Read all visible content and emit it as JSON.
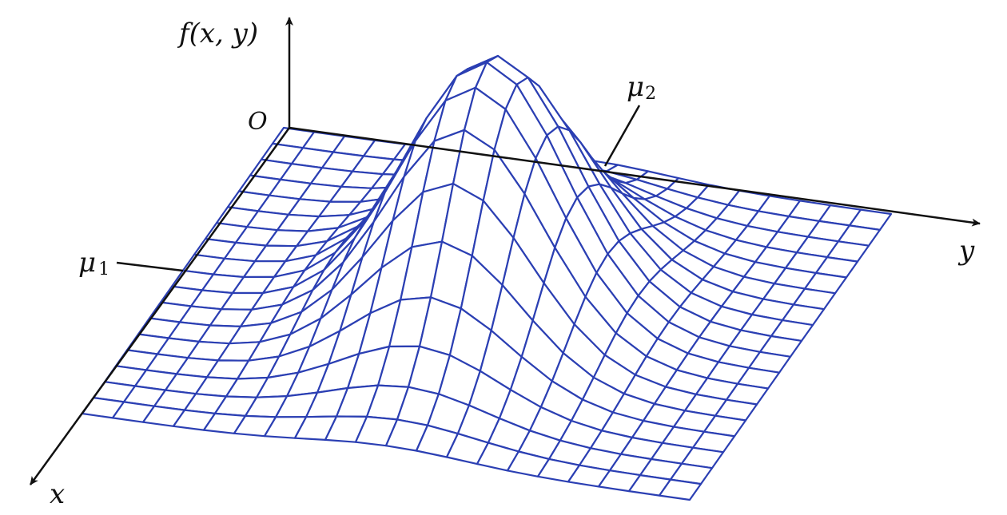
{
  "labels": {
    "z_axis": "f(x, y)",
    "origin": "O",
    "x_axis": "x",
    "y_axis": "y",
    "mu1": "μ",
    "mu1_sub": "1",
    "mu2": "μ",
    "mu2_sub": "2"
  },
  "colors": {
    "mesh": "#2b3fb3",
    "axes": "#111111"
  },
  "surface": {
    "function": "bivariate normal density",
    "grid_rows_x": 18,
    "grid_cols_y": 20
  }
}
